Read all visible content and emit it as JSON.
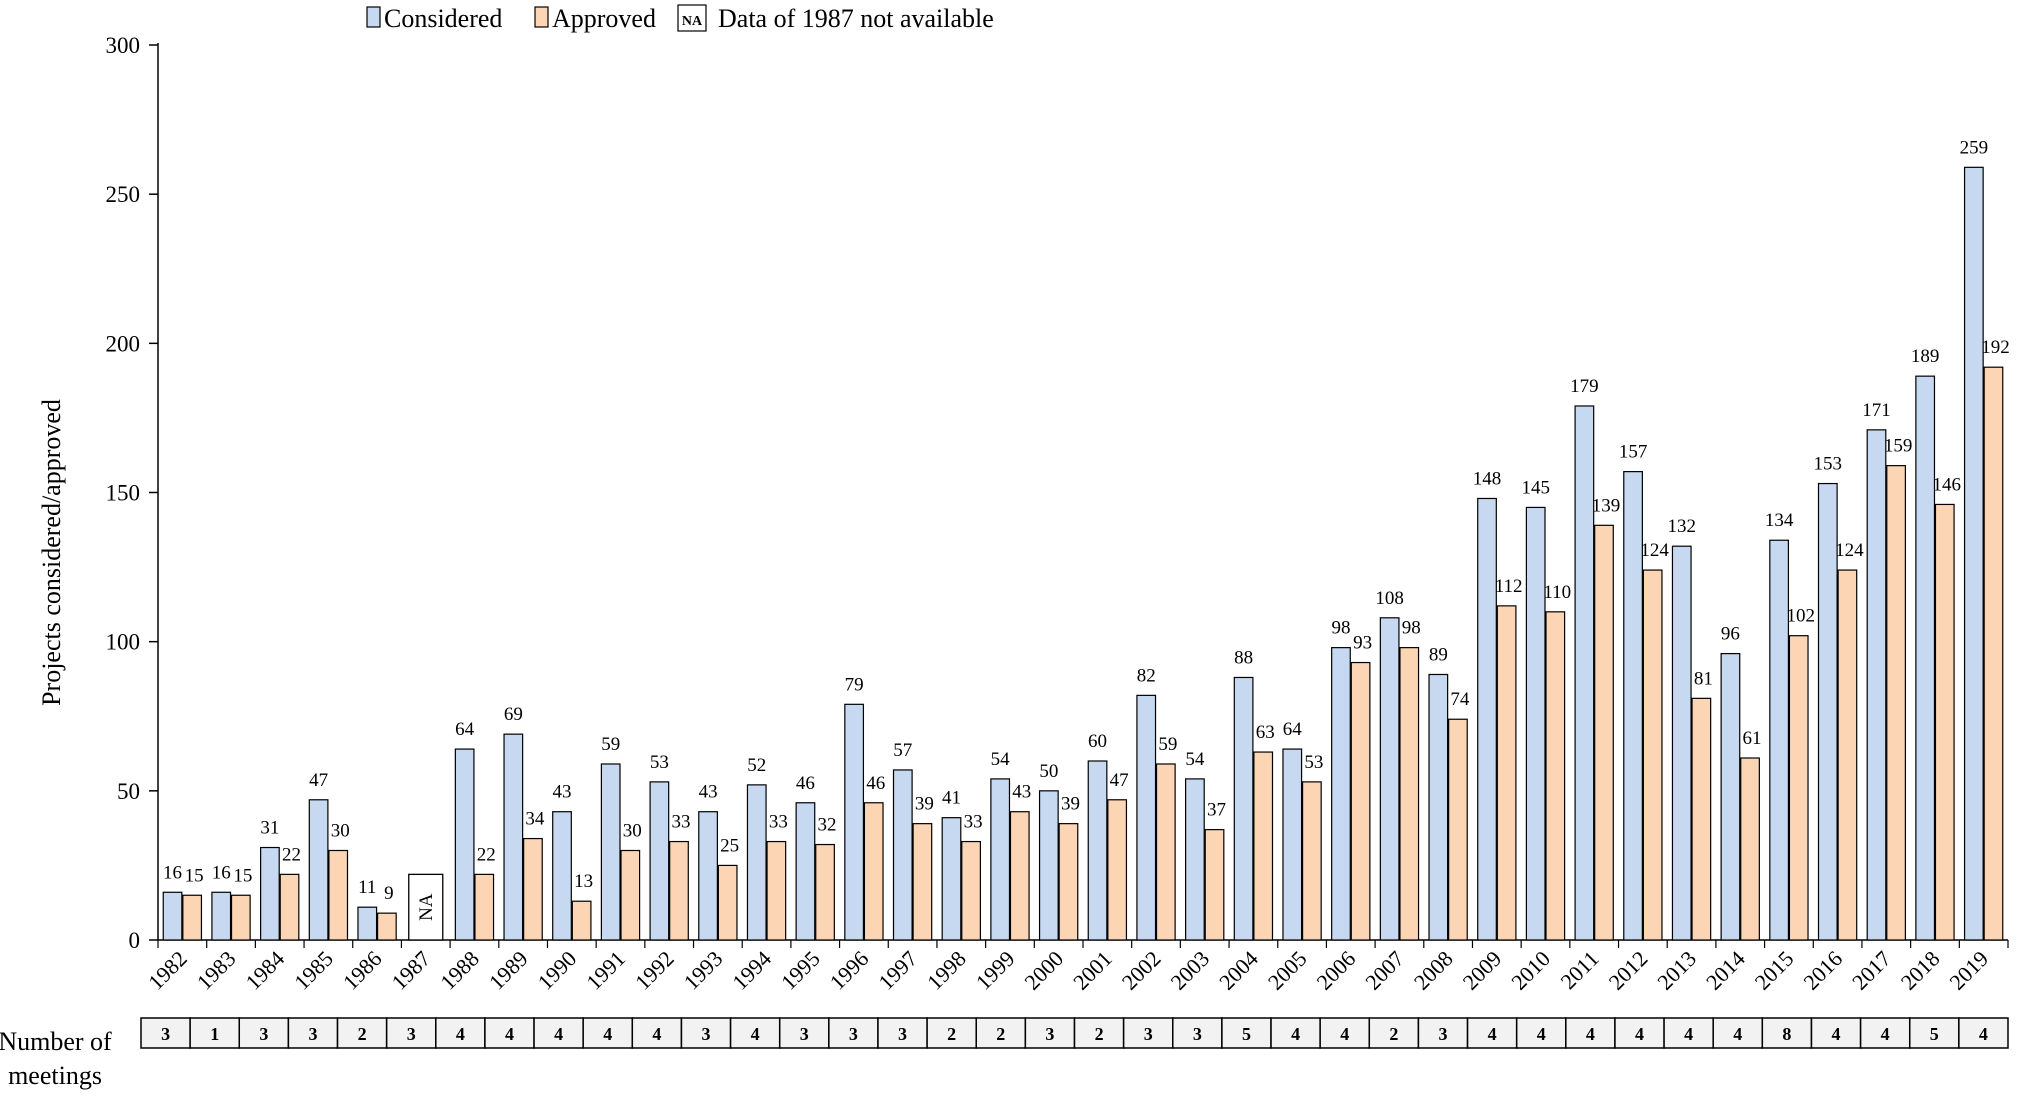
{
  "chart_data": {
    "type": "bar",
    "title": "",
    "xlabel": "",
    "ylabel": "Projects considered/approved",
    "ylim": [
      0,
      300
    ],
    "yticks": [
      0,
      50,
      100,
      150,
      200,
      250,
      300
    ],
    "categories": [
      "1982",
      "1983",
      "1984",
      "1985",
      "1986",
      "1987",
      "1988",
      "1989",
      "1990",
      "1991",
      "1992",
      "1993",
      "1994",
      "1995",
      "1996",
      "1997",
      "1998",
      "1999",
      "2000",
      "2001",
      "2002",
      "2003",
      "2004",
      "2005",
      "2006",
      "2007",
      "2008",
      "2009",
      "2010",
      "2011",
      "2012",
      "2013",
      "2014",
      "2015",
      "2016",
      "2017",
      "2018",
      "2019"
    ],
    "series": [
      {
        "name": "Considered",
        "color": "#c6d9f1",
        "values": [
          16,
          16,
          31,
          47,
          11,
          null,
          64,
          69,
          43,
          59,
          53,
          43,
          52,
          46,
          79,
          57,
          41,
          54,
          50,
          60,
          82,
          54,
          88,
          64,
          98,
          108,
          89,
          148,
          145,
          179,
          157,
          132,
          96,
          134,
          153,
          171,
          189,
          259
        ]
      },
      {
        "name": "Approved",
        "color": "#fcd5b4",
        "values": [
          15,
          15,
          22,
          30,
          9,
          null,
          22,
          34,
          13,
          30,
          33,
          25,
          33,
          32,
          46,
          39,
          33,
          43,
          39,
          47,
          59,
          37,
          63,
          53,
          93,
          98,
          74,
          112,
          110,
          139,
          124,
          81,
          61,
          102,
          124,
          159,
          146,
          192
        ]
      }
    ],
    "na_marker": {
      "year": "1987",
      "label": "NA",
      "legend_label": "Data of 1987 not available"
    },
    "legend": {
      "position": "top"
    },
    "meetings": {
      "title_line1": "Number of",
      "title_line2": "meetings",
      "values": [
        3,
        1,
        3,
        3,
        2,
        3,
        4,
        4,
        4,
        4,
        4,
        3,
        4,
        3,
        3,
        3,
        2,
        2,
        3,
        2,
        3,
        3,
        5,
        4,
        4,
        2,
        3,
        4,
        4,
        4,
        4,
        4,
        4,
        8,
        4,
        4,
        5,
        4
      ]
    }
  }
}
